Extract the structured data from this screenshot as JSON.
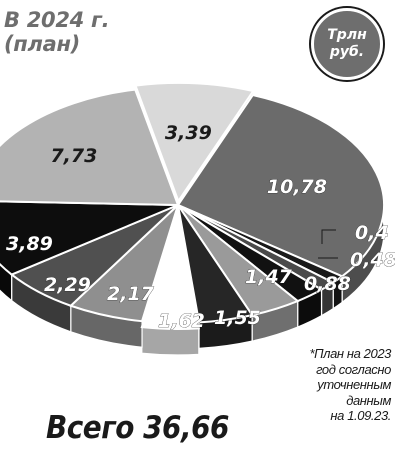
{
  "header": {
    "title_line1": "В 2024 г.",
    "title_line2": "(план)"
  },
  "unit_badge": {
    "line1": "Трлн",
    "line2": "руб."
  },
  "total": {
    "label": "Всего",
    "value": "36,66"
  },
  "footnote": {
    "lines": [
      "*План на 2023",
      "год согласно",
      "уточненным",
      "данным",
      "на 1.09.23."
    ]
  },
  "chart_data": {
    "type": "pie",
    "title": "",
    "unit": "Трлн руб.",
    "slices": [
      {
        "label": "3,39",
        "value": 3.39,
        "color": "#d9d9d9",
        "text_color": "#1a1a1a"
      },
      {
        "label": "10,78",
        "value": 10.78,
        "color": "#6b6b6b",
        "text_color": "#ffffff"
      },
      {
        "label": "0,4",
        "value": 0.4,
        "color": "#1a1a1a",
        "text_color": "#ffffff"
      },
      {
        "label": "0,48",
        "value": 0.48,
        "color": "#4a4a4a",
        "text_color": "#ffffff"
      },
      {
        "label": "0,88",
        "value": 0.88,
        "color": "#111111",
        "text_color": "#ffffff"
      },
      {
        "label": "1,47",
        "value": 1.47,
        "color": "#9a9a9a",
        "text_color": "#ffffff"
      },
      {
        "label": "1,55",
        "value": 1.55,
        "color": "#262626",
        "text_color": "#ffffff"
      },
      {
        "label": "1,62",
        "value": 1.62,
        "color": "#ffffff",
        "text_color": "#ffffff"
      },
      {
        "label": "2,17",
        "value": 2.17,
        "color": "#8f8f8f",
        "text_color": "#ffffff"
      },
      {
        "label": "2,29",
        "value": 2.29,
        "color": "#505050",
        "text_color": "#ffffff"
      },
      {
        "label": "3,89",
        "value": 3.89,
        "color": "#0d0d0d",
        "text_color": "#ffffff"
      },
      {
        "label": "7,73",
        "value": 7.73,
        "color": "#b3b3b3",
        "text_color": "#1a1a1a"
      }
    ]
  }
}
